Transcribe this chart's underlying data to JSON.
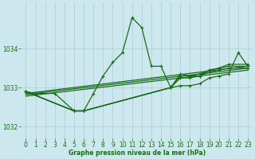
{
  "bg_color": "#cce8ee",
  "grid_color": "#aacccc",
  "line_color": "#1a6b1a",
  "xlabel": "Graphe pression niveau de la mer (hPa)",
  "xlim": [
    -0.5,
    23.5
  ],
  "ylim": [
    1031.7,
    1035.2
  ],
  "yticks": [
    1032,
    1033,
    1034
  ],
  "xticks": [
    0,
    1,
    2,
    3,
    4,
    5,
    6,
    7,
    8,
    9,
    10,
    11,
    12,
    13,
    14,
    15,
    16,
    17,
    18,
    19,
    20,
    21,
    22,
    23
  ],
  "series1_x": [
    0,
    1,
    3,
    5,
    6,
    7,
    8,
    9,
    10,
    11,
    12,
    13,
    14,
    15,
    16,
    17,
    18,
    19,
    20,
    21,
    22,
    23
  ],
  "series1_y": [
    1032.9,
    1032.85,
    1032.85,
    1032.4,
    1032.4,
    1032.85,
    1033.3,
    1033.65,
    1033.9,
    1034.8,
    1034.55,
    1033.55,
    1033.55,
    1033.0,
    1033.05,
    1033.05,
    1033.1,
    1033.25,
    1033.3,
    1033.35,
    1033.9,
    1033.55
  ],
  "series2_x": [
    0,
    5,
    6,
    15,
    16,
    17,
    18,
    19,
    20,
    21,
    23
  ],
  "series2_y": [
    1032.9,
    1032.4,
    1032.4,
    1033.0,
    1033.25,
    1033.25,
    1033.3,
    1033.4,
    1033.45,
    1033.5,
    1033.5
  ],
  "series3_x": [
    0,
    5,
    6,
    15,
    16,
    17,
    18,
    19,
    20,
    21,
    23
  ],
  "series3_y": [
    1032.9,
    1032.4,
    1032.4,
    1033.0,
    1033.3,
    1033.3,
    1033.3,
    1033.45,
    1033.5,
    1033.55,
    1033.55
  ],
  "series4_x": [
    0,
    5,
    6,
    15,
    16,
    17,
    18,
    19,
    20,
    21,
    23
  ],
  "series4_y": [
    1032.9,
    1032.4,
    1032.4,
    1033.0,
    1033.35,
    1033.3,
    1033.35,
    1033.45,
    1033.5,
    1033.6,
    1033.6
  ],
  "series5_x": [
    0,
    23
  ],
  "series5_y": [
    1032.85,
    1033.55
  ],
  "series6_x": [
    0,
    23
  ],
  "series6_y": [
    1032.82,
    1033.5
  ],
  "series7_x": [
    0,
    23
  ],
  "series7_y": [
    1032.78,
    1033.45
  ],
  "linewidth": 0.9,
  "markersize": 3.0
}
